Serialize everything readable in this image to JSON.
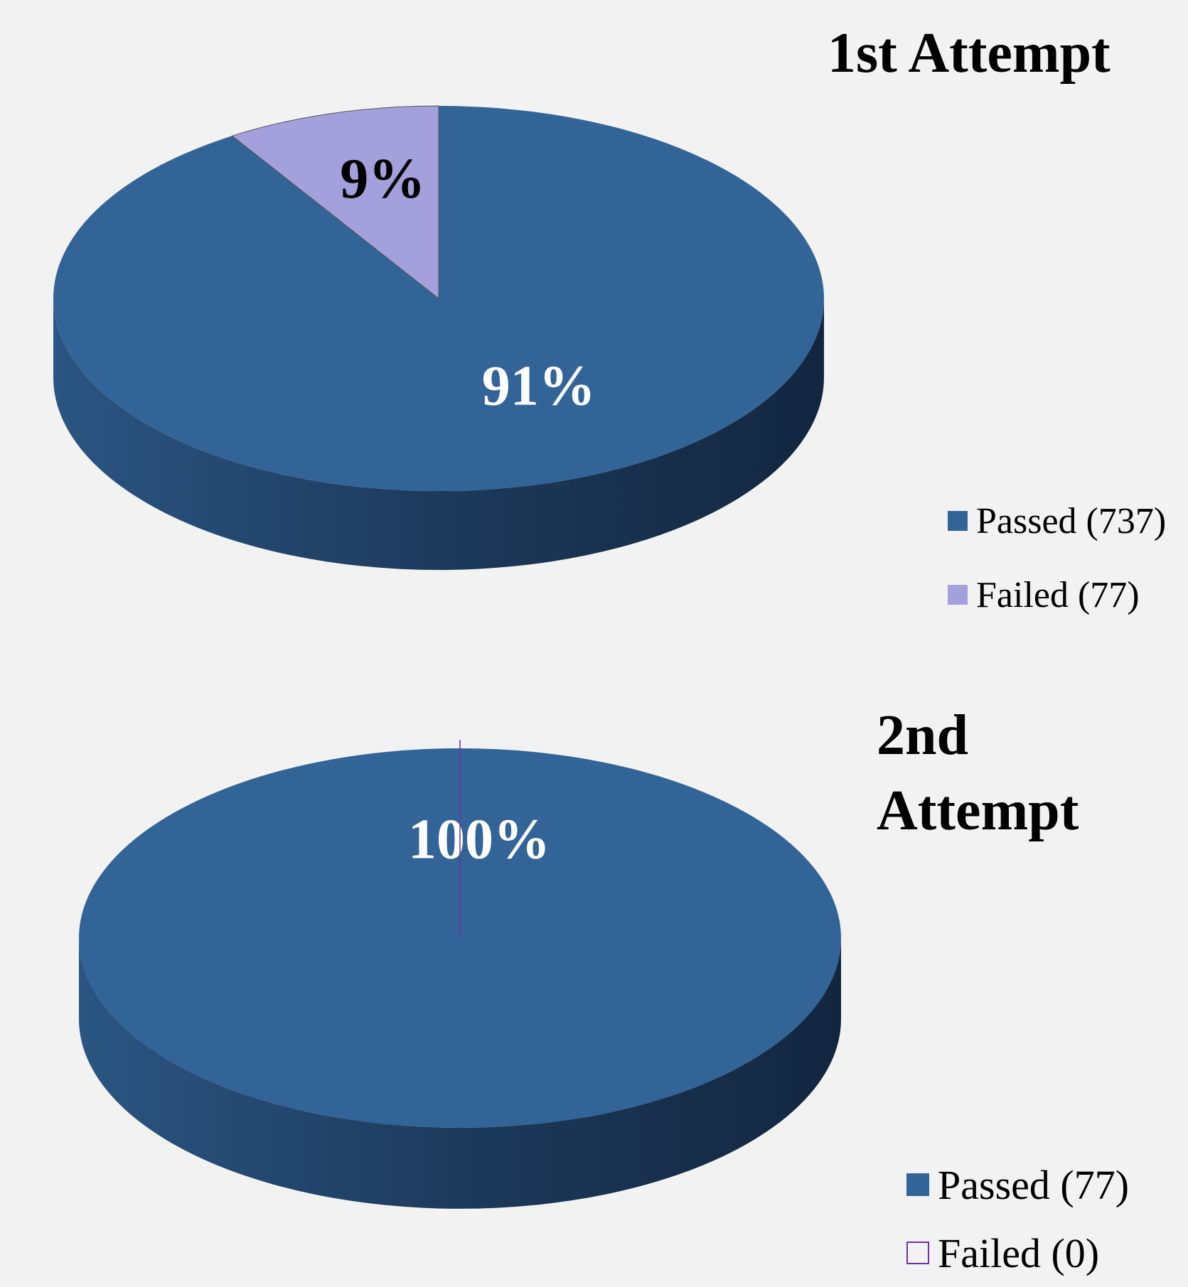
{
  "chart_data": [
    {
      "type": "pie3d",
      "title": "1st Attempt",
      "categories": [
        "Passed (737)",
        "Failed (77)"
      ],
      "values": [
        91,
        9
      ],
      "value_labels": [
        "91%",
        "9%"
      ],
      "colors": [
        "#336497",
        "#a3a0dc"
      ],
      "value_label_colors": [
        "#ffffff",
        "#000000"
      ]
    },
    {
      "type": "pie3d",
      "title": "2nd Attempt",
      "categories": [
        "Passed (77)",
        "Failed (0)"
      ],
      "values": [
        100,
        0
      ],
      "value_labels": [
        "100%",
        null
      ],
      "colors": [
        "#336497",
        "#7030a0"
      ],
      "value_label_colors": [
        "#ffffff",
        "#000000"
      ]
    }
  ]
}
